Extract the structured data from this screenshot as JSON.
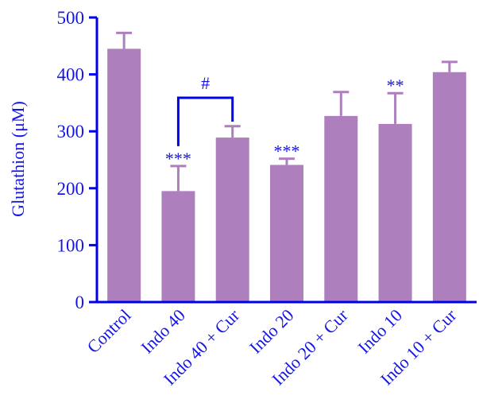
{
  "colors": {
    "axis": "#0000ee",
    "bar": "#ad7fbd",
    "text": "#1515e6"
  },
  "chart_data": {
    "type": "bar",
    "title": "",
    "xlabel": "",
    "ylabel": "Glutathion (μM)",
    "ylim": [
      0,
      500
    ],
    "yticks": [
      0,
      100,
      200,
      300,
      400,
      500
    ],
    "ytick_labels": [
      "0",
      "100",
      "200",
      "300",
      "400",
      "500"
    ],
    "categories": [
      "Control",
      "Indo 40",
      "Indo 40 + Cur",
      "Indo 20",
      "Indo 20 + Cur",
      "Indo 10",
      "Indo 10 + Cur"
    ],
    "values": [
      445,
      195,
      289,
      241,
      327,
      313,
      404
    ],
    "errors": [
      28,
      44,
      20,
      11,
      42,
      54,
      18
    ],
    "annotations": [
      "",
      "***",
      "",
      "***",
      "",
      "**",
      ""
    ],
    "comparison": {
      "from": 1,
      "to": 2,
      "label": "#"
    },
    "grid": false
  }
}
